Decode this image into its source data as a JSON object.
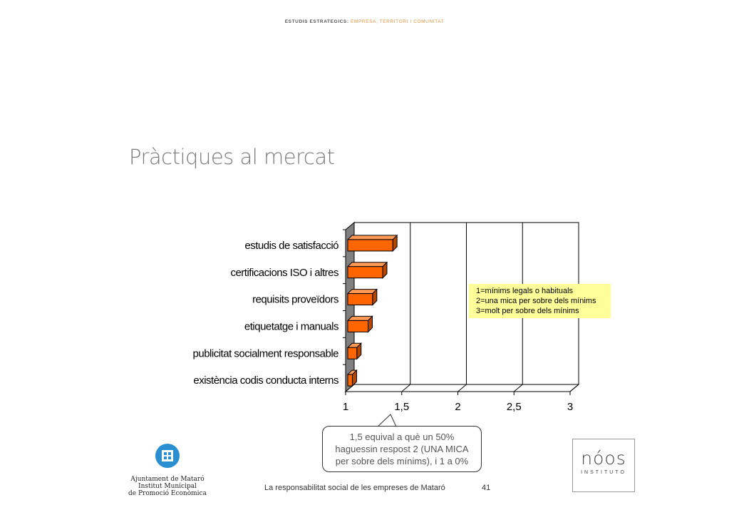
{
  "header": {
    "prefix": "ESTUDIS ESTRATEGICS:",
    "accent": "EMPRESA, TERRITORI I COMUNITAT"
  },
  "slide_title": "Pràctiques al mercat",
  "chart_data": {
    "type": "bar",
    "orientation": "horizontal",
    "categories": [
      "estudis de satisfacció",
      "certificacions ISO i altres",
      "requisits proveïdors",
      "etiquetatge i manuals",
      "publicitat socialment responsable",
      "existència codis conducta interns"
    ],
    "values": [
      1.42,
      1.33,
      1.24,
      1.2,
      1.1,
      1.06
    ],
    "xlim": [
      1,
      3
    ],
    "x_ticks": [
      "1",
      "1,5",
      "2",
      "2,5",
      "3"
    ],
    "grid": true,
    "bar_color": "#ff6600",
    "legend_note": [
      "1=mínims legals o habituals",
      "2=una mica per sobre dels mínims",
      "3=molt per sobre dels mínims"
    ],
    "annotation": [
      "1,5 equival a què un 50%",
      "haguessin respost 2 (UNA MICA",
      "per sobre dels mínims), i 1 a 0%"
    ]
  },
  "footer": {
    "text": "La responsabilitat social de les empreses de Mataró",
    "page": "41"
  },
  "logo_left": {
    "lines": [
      "Ajuntament de Mataró",
      "Institut Municipal",
      "de Promoció Econòmica"
    ]
  },
  "logo_right": {
    "brand": "nóos",
    "sub": "INSTITUTO"
  }
}
